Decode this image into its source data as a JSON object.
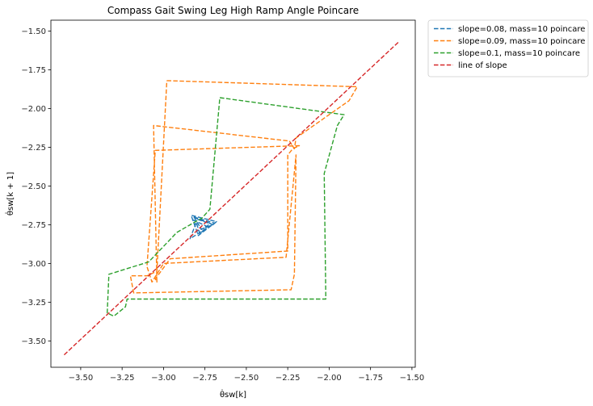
{
  "chart_data": {
    "type": "line",
    "title": "Compass Gait Swing Leg High Ramp Angle Poincare",
    "xlabel": "θ̇sw[k]",
    "ylabel": "θ̇sw[k + 1]",
    "xlim": [
      -3.68,
      -1.48
    ],
    "ylim": [
      -3.67,
      -1.43
    ],
    "xticks": [
      -3.5,
      -3.25,
      -3.0,
      -2.75,
      -2.5,
      -2.25,
      -2.0,
      -1.75,
      -1.5
    ],
    "xtick_labels": [
      "−3.50",
      "−3.25",
      "−3.00",
      "−2.75",
      "−2.50",
      "−2.25",
      "−2.00",
      "−1.75",
      "−1.50"
    ],
    "yticks": [
      -3.5,
      -3.25,
      -3.0,
      -2.75,
      -2.5,
      -2.25,
      -2.0,
      -1.75,
      -1.5
    ],
    "ytick_labels": [
      "−3.50",
      "−3.25",
      "−3.00",
      "−2.75",
      "−2.50",
      "−2.25",
      "−2.00",
      "−1.75",
      "−1.50"
    ],
    "grid": false,
    "legend_position": "outside-top-right",
    "series": [
      {
        "name": "slope=0.08, mass=10 poincare",
        "color": "#1f77b4",
        "style": "dashed",
        "x": [
          -2.83,
          -2.68,
          -2.79,
          -2.83,
          -2.72,
          -2.78,
          -2.81,
          -2.7,
          -2.8,
          -2.82,
          -2.74,
          -2.77,
          -2.8,
          -2.84,
          -2.69,
          -2.82
        ],
        "y": [
          -2.69,
          -2.73,
          -2.82,
          -2.7,
          -2.74,
          -2.81,
          -2.71,
          -2.75,
          -2.79,
          -2.72,
          -2.76,
          -2.78,
          -2.73,
          -2.84,
          -2.74,
          -2.7
        ]
      },
      {
        "name": "slope=0.09, mass=10 poincare",
        "color": "#ff7f0e",
        "style": "dashed",
        "x": [
          -2.98,
          -1.83,
          -1.88,
          -2.2,
          -2.21,
          -2.24,
          -3.06,
          -3.04,
          -3.05,
          -2.96,
          -2.25,
          -2.25,
          -2.22,
          -2.18,
          -3.05,
          -3.1,
          -3.07,
          -3.0,
          -2.26,
          -2.2,
          -2.21,
          -2.23,
          -3.18,
          -3.2,
          -3.1,
          -3.04,
          -2.98
        ],
        "y": [
          -1.82,
          -1.86,
          -1.95,
          -2.19,
          -2.26,
          -2.21,
          -2.11,
          -3.12,
          -3.1,
          -2.97,
          -2.92,
          -2.3,
          -2.26,
          -2.24,
          -2.27,
          -3.02,
          -3.12,
          -3.0,
          -2.96,
          -2.3,
          -3.07,
          -3.17,
          -3.19,
          -3.08,
          -3.08,
          -3.05,
          -1.82
        ]
      },
      {
        "name": "slope=0.1, mass=10 poincare",
        "color": "#2ca02c",
        "style": "dashed",
        "x": [
          -2.66,
          -1.91,
          -1.95,
          -2.03,
          -2.02,
          -3.22,
          -3.23,
          -3.3,
          -3.34,
          -3.33,
          -3.09,
          -3.0,
          -2.92,
          -2.79,
          -2.77,
          -2.72,
          -2.66
        ],
        "y": [
          -1.93,
          -2.04,
          -2.11,
          -2.42,
          -3.23,
          -3.23,
          -3.28,
          -3.34,
          -3.32,
          -3.07,
          -2.99,
          -2.89,
          -2.8,
          -2.72,
          -2.71,
          -2.65,
          -1.93
        ]
      },
      {
        "name": "line of slope",
        "color": "#d62728",
        "style": "dashed",
        "x": [
          -3.6,
          -1.58
        ],
        "y": [
          -3.59,
          -1.57
        ]
      }
    ]
  }
}
